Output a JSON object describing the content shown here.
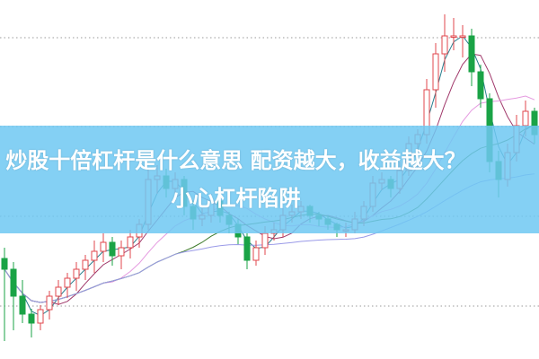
{
  "chart_data": {
    "type": "candlestick",
    "title": "",
    "xlabel": "",
    "ylabel": "",
    "ylim": [
      0,
      100
    ],
    "grid": "horizontal-dotted",
    "colors": {
      "up": "#e0474c",
      "down": "#1aa346",
      "grid": "#999999",
      "ma": [
        "#2a7f8f",
        "#a0386a",
        "#e59ae0",
        "#3d7a2a",
        "#9a9ae8"
      ]
    },
    "candles": [
      [
        28,
        31,
        5,
        25
      ],
      [
        25,
        27,
        8,
        17.5
      ],
      [
        17.5,
        22,
        10,
        12.5
      ],
      [
        12.5,
        14,
        6,
        10
      ],
      [
        10,
        15,
        8,
        13.75
      ],
      [
        13.75,
        19,
        11,
        17.5
      ],
      [
        17.5,
        22,
        15,
        20
      ],
      [
        20,
        24,
        17,
        22.5
      ],
      [
        22.5,
        27,
        19,
        25
      ],
      [
        25,
        29,
        22,
        27.5
      ],
      [
        27.5,
        33,
        24,
        30
      ],
      [
        30,
        35,
        27,
        32.5
      ],
      [
        32.5,
        34,
        26,
        28.75
      ],
      [
        28.75,
        33,
        25,
        31
      ],
      [
        31,
        36,
        28,
        34
      ],
      [
        34,
        39,
        31,
        37.5
      ],
      [
        37.5,
        53,
        36,
        50
      ],
      [
        50,
        54,
        46,
        51
      ],
      [
        51,
        53,
        45,
        47.5
      ],
      [
        47.5,
        52,
        44,
        50
      ],
      [
        50,
        51,
        40,
        42.5
      ],
      [
        42.5,
        44,
        36,
        39
      ],
      [
        39,
        42,
        37,
        40
      ],
      [
        40,
        46,
        38,
        44
      ],
      [
        44,
        45,
        38,
        40
      ],
      [
        40,
        41,
        35,
        37.5
      ],
      [
        37.5,
        39,
        32,
        34
      ],
      [
        34,
        35,
        25,
        27.5
      ],
      [
        27.5,
        33,
        26,
        31
      ],
      [
        31,
        37,
        29,
        35
      ],
      [
        35,
        38,
        33,
        36
      ],
      [
        36,
        42,
        34,
        40
      ],
      [
        40,
        43,
        38,
        41
      ],
      [
        41,
        44,
        39,
        42.5
      ],
      [
        42.5,
        43,
        38,
        40
      ],
      [
        40,
        41,
        37,
        39
      ],
      [
        39,
        40,
        36,
        37.5
      ],
      [
        37.5,
        38,
        34,
        36
      ],
      [
        36,
        38,
        34,
        36
      ],
      [
        36,
        41,
        35,
        39
      ],
      [
        39,
        44,
        37,
        42.5
      ],
      [
        42.5,
        51,
        41,
        49
      ],
      [
        49,
        52,
        47,
        50
      ],
      [
        50,
        51,
        45,
        47.5
      ],
      [
        47.5,
        55,
        46,
        52.5
      ],
      [
        52.5,
        62,
        51,
        60
      ],
      [
        60,
        64,
        57,
        62.5
      ],
      [
        62.5,
        78,
        60,
        75
      ],
      [
        75,
        88,
        70,
        85
      ],
      [
        85,
        96,
        80,
        90
      ],
      [
        90,
        95,
        86,
        90
      ],
      [
        90,
        93,
        84,
        90
      ],
      [
        90,
        92,
        76,
        80
      ],
      [
        80,
        82,
        70,
        72.5
      ],
      [
        72.5,
        74,
        52,
        55
      ],
      [
        55,
        58,
        45,
        50
      ],
      [
        50,
        60,
        48,
        57.5
      ],
      [
        57.5,
        68,
        55,
        65
      ],
      [
        65,
        72,
        62,
        69
      ],
      [
        69,
        70,
        60,
        62.5
      ]
    ]
  },
  "banner": {
    "line1": "炒股十倍杠杆是什么意思 配资越大，收益越大？",
    "line2": "小心杠杆陷阱"
  }
}
